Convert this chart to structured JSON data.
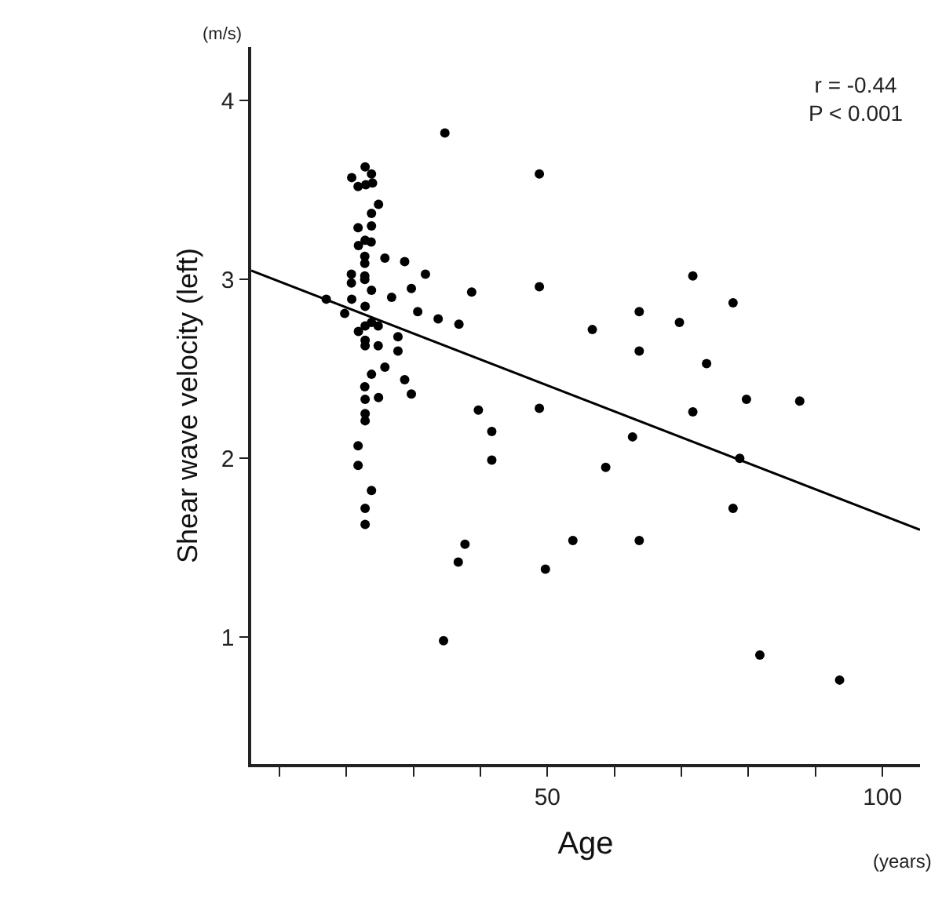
{
  "chart_data": {
    "type": "scatter",
    "xlabel": "Age",
    "ylabel": "Shear wave velocity (left)",
    "annotations": [
      "r = -0.44\nP < 0.001",
      "(m/s)",
      "(years)"
    ],
    "xlim": [
      5.8,
      105.6
    ],
    "ylim": [
      0.29,
      4.3
    ],
    "xticks": [
      {
        "value": 10,
        "label": null
      },
      {
        "value": 20,
        "label": null
      },
      {
        "value": 30,
        "label": null
      },
      {
        "value": 40,
        "label": null
      },
      50,
      {
        "value": 60,
        "label": null
      },
      {
        "value": 70,
        "label": null
      },
      {
        "value": 80,
        "label": null
      },
      {
        "value": 90,
        "label": null
      },
      100
    ],
    "yticks": [
      1,
      2,
      3,
      4
    ],
    "marker": "circle",
    "series": [
      {
        "color": "#000000",
        "x": [
          34.7,
          22.8,
          20.8,
          23.75,
          21.75,
          22.9,
          23.9,
          24.8,
          23.75,
          21.75,
          23.75,
          22.8,
          21.8,
          23.7,
          22.75,
          25.75,
          28.7,
          22.75,
          31.8,
          20.75,
          22.75,
          20.75,
          22.75,
          29.7,
          23.75,
          38.7,
          17.0,
          20.8,
          26.75,
          22.8,
          19.75,
          30.65,
          33.7,
          36.8,
          23.75,
          22.8,
          24.75,
          21.8,
          27.7,
          22.8,
          22.8,
          24.75,
          27.7,
          25.75,
          23.75,
          28.7,
          22.75,
          29.7,
          22.8,
          24.8,
          22.8,
          22.8,
          39.7,
          41.7,
          41.7,
          21.75,
          21.75,
          23.75,
          22.8,
          22.8,
          37.7,
          36.7,
          34.5,
          48.8,
          48.8,
          71.7,
          77.7,
          63.7,
          56.7,
          69.7,
          63.7,
          73.75,
          48.8,
          71.7,
          79.7,
          87.65,
          62.7,
          58.7,
          78.7,
          77.7,
          53.8,
          63.7,
          49.7,
          81.7,
          93.6
        ],
        "values": [
          3.82,
          3.63,
          3.57,
          3.59,
          3.52,
          3.53,
          3.54,
          3.42,
          3.37,
          3.29,
          3.3,
          3.22,
          3.19,
          3.21,
          3.13,
          3.12,
          3.1,
          3.09,
          3.03,
          3.03,
          3.02,
          2.98,
          3.0,
          2.95,
          2.94,
          2.93,
          2.89,
          2.89,
          2.9,
          2.85,
          2.81,
          2.82,
          2.78,
          2.75,
          2.76,
          2.74,
          2.74,
          2.71,
          2.68,
          2.66,
          2.63,
          2.63,
          2.6,
          2.51,
          2.47,
          2.44,
          2.4,
          2.36,
          2.33,
          2.34,
          2.25,
          2.21,
          2.27,
          2.15,
          1.99,
          2.07,
          1.96,
          1.82,
          1.72,
          1.63,
          1.52,
          1.42,
          0.98,
          3.59,
          2.96,
          3.02,
          2.87,
          2.82,
          2.72,
          2.76,
          2.6,
          2.53,
          2.28,
          2.26,
          2.33,
          2.32,
          2.12,
          1.95,
          2.0,
          1.72,
          1.54,
          1.54,
          1.38,
          0.9,
          0.76
        ]
      },
      {
        "type": "line",
        "marker": "none",
        "color": "#000000",
        "x": [
          5.8,
          105.6
        ],
        "values": [
          3.05,
          1.6
        ]
      }
    ]
  }
}
